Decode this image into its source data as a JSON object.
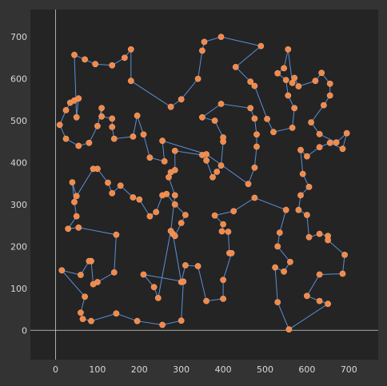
{
  "chart_data": {
    "type": "scatter",
    "title": "",
    "xlabel": "",
    "ylabel": "",
    "xlim": [
      -60,
      770
    ],
    "ylim": [
      -70,
      765
    ],
    "x_ticks": [
      0,
      100,
      200,
      300,
      400,
      500,
      600,
      700
    ],
    "y_ticks": [
      0,
      100,
      200,
      300,
      400,
      500,
      600,
      700
    ],
    "grid": false,
    "colors": {
      "background": "#242424",
      "points": "#f08a4b",
      "route": "#5b8fd8",
      "axes": "#cfcfcf"
    },
    "series": [
      {
        "closed": true,
        "points": [
          [
            557,
            2
          ],
          [
            530,
            67
          ],
          [
            524,
            150
          ],
          [
            545,
            140
          ],
          [
            560,
            163
          ],
          [
            530,
            200
          ],
          [
            535,
            233
          ],
          [
            550,
            287
          ],
          [
            475,
            316
          ],
          [
            425,
            284
          ],
          [
            380,
            274
          ],
          [
            400,
            253
          ],
          [
            397,
            236
          ],
          [
            412,
            235
          ],
          [
            415,
            184
          ],
          [
            420,
            184
          ],
          [
            400,
            120
          ],
          [
            400,
            75
          ],
          [
            360,
            70
          ],
          [
            340,
            153
          ],
          [
            310,
            155
          ],
          [
            300,
            115
          ],
          [
            280,
            230
          ],
          [
            285,
            225
          ],
          [
            300,
            256
          ],
          [
            310,
            275
          ],
          [
            285,
            300
          ],
          [
            265,
            325
          ],
          [
            255,
            322
          ],
          [
            240,
            282
          ],
          [
            225,
            272
          ],
          [
            200,
            312
          ],
          [
            185,
            317
          ],
          [
            155,
            345
          ],
          [
            135,
            327
          ],
          [
            125,
            352
          ],
          [
            100,
            385
          ],
          [
            90,
            385
          ],
          [
            50,
            320
          ],
          [
            40,
            353
          ],
          [
            45,
            306
          ],
          [
            50,
            272
          ],
          [
            30,
            242
          ],
          [
            55,
            245
          ],
          [
            145,
            228
          ],
          [
            140,
            138
          ],
          [
            100,
            115
          ],
          [
            90,
            110
          ],
          [
            85,
            165
          ],
          [
            80,
            165
          ],
          [
            60,
            132
          ],
          [
            15,
            143
          ],
          [
            70,
            80
          ],
          [
            60,
            42
          ],
          [
            65,
            27
          ],
          [
            85,
            22
          ],
          [
            145,
            40
          ],
          [
            195,
            22
          ],
          [
            255,
            13
          ],
          [
            300,
            23
          ],
          [
            305,
            116
          ],
          [
            210,
            133
          ],
          [
            235,
            103
          ],
          [
            245,
            77
          ],
          [
            275,
            237
          ],
          [
            285,
            322
          ],
          [
            270,
            365
          ],
          [
            275,
            377
          ],
          [
            285,
            382
          ],
          [
            285,
            428
          ],
          [
            350,
            418
          ],
          [
            360,
            405
          ],
          [
            375,
            365
          ],
          [
            385,
            378
          ],
          [
            395,
            393
          ],
          [
            400,
            450
          ],
          [
            400,
            460
          ],
          [
            380,
            500
          ],
          [
            350,
            508
          ],
          [
            395,
            540
          ],
          [
            465,
            530
          ],
          [
            475,
            505
          ],
          [
            480,
            467
          ],
          [
            480,
            438
          ],
          [
            475,
            388
          ],
          [
            460,
            349
          ],
          [
            360,
            420
          ],
          [
            255,
            452
          ],
          [
            260,
            403
          ],
          [
            225,
            412
          ],
          [
            210,
            467
          ],
          [
            195,
            512
          ],
          [
            185,
            462
          ],
          [
            140,
            457
          ],
          [
            135,
            485
          ],
          [
            135,
            505
          ],
          [
            110,
            510
          ],
          [
            110,
            530
          ],
          [
            100,
            487
          ],
          [
            80,
            447
          ],
          [
            55,
            440
          ],
          [
            25,
            457
          ],
          [
            10,
            490
          ],
          [
            25,
            525
          ],
          [
            35,
            543
          ],
          [
            45,
            548
          ],
          [
            55,
            553
          ],
          [
            50,
            508
          ],
          [
            45,
            657
          ],
          [
            70,
            646
          ],
          [
            95,
            635
          ],
          [
            135,
            632
          ],
          [
            165,
            650
          ],
          [
            180,
            670
          ],
          [
            180,
            595
          ],
          [
            275,
            533
          ],
          [
            300,
            551
          ],
          [
            340,
            600
          ],
          [
            350,
            667
          ],
          [
            355,
            688
          ],
          [
            395,
            700
          ],
          [
            490,
            678
          ],
          [
            430,
            628
          ],
          [
            465,
            593
          ],
          [
            475,
            583
          ],
          [
            505,
            504
          ],
          [
            520,
            473
          ],
          [
            565,
            483
          ],
          [
            570,
            530
          ],
          [
            555,
            560
          ],
          [
            550,
            597
          ],
          [
            530,
            613
          ],
          [
            545,
            625
          ],
          [
            555,
            670
          ],
          [
            565,
            590
          ],
          [
            570,
            602
          ],
          [
            580,
            582
          ],
          [
            620,
            595
          ],
          [
            635,
            614
          ],
          [
            655,
            588
          ],
          [
            655,
            560
          ],
          [
            640,
            537
          ],
          [
            610,
            496
          ],
          [
            630,
            468
          ],
          [
            670,
            448
          ],
          [
            695,
            470
          ],
          [
            685,
            433
          ],
          [
            655,
            447
          ],
          [
            630,
            437
          ],
          [
            600,
            415
          ],
          [
            585,
            430
          ],
          [
            590,
            373
          ],
          [
            605,
            342
          ],
          [
            585,
            322
          ],
          [
            580,
            287
          ],
          [
            600,
            275
          ],
          [
            605,
            222
          ],
          [
            630,
            230
          ],
          [
            650,
            225
          ],
          [
            650,
            215
          ],
          [
            690,
            180
          ],
          [
            685,
            135
          ],
          [
            630,
            133
          ],
          [
            600,
            82
          ],
          [
            630,
            70
          ],
          [
            650,
            63
          ]
        ]
      }
    ]
  }
}
